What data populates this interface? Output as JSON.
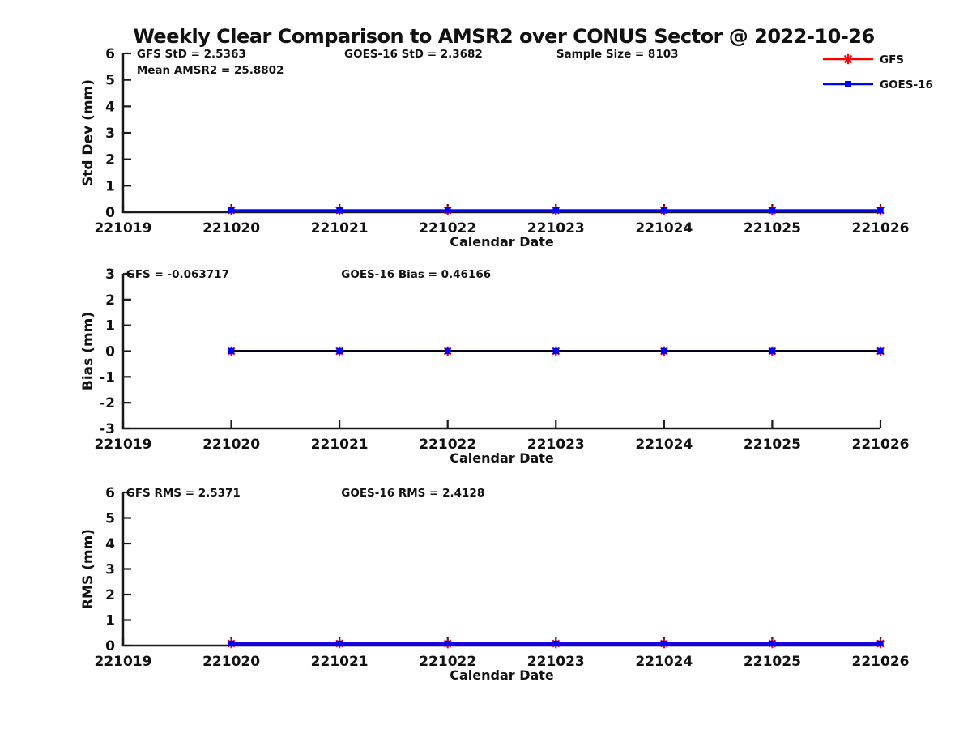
{
  "page": {
    "title": "Weekly Clear Comparison to AMSR2 over CONUS Sector @ 2022-10-26",
    "background": "#ffffff",
    "text_color": "#111111"
  },
  "legend": {
    "position": "top-right",
    "items": [
      {
        "label": "GFS",
        "color": "#ff0000",
        "marker": "asterisk"
      },
      {
        "label": "GOES-16",
        "color": "#0000ff",
        "marker": "square"
      }
    ]
  },
  "chart_data": [
    {
      "type": "line",
      "ylabel": "Std Dev (mm)",
      "xlabel": "Calendar Date",
      "ylim": [
        0,
        6
      ],
      "yticks": [
        0,
        1,
        2,
        3,
        4,
        5,
        6
      ],
      "x_range": [
        221019,
        221026
      ],
      "xtick_labels": [
        "221019",
        "221020",
        "221021",
        "221022",
        "221023",
        "221024",
        "221025",
        "221026"
      ],
      "grid": false,
      "annotations": [
        {
          "text": "GFS StD = 2.5363",
          "fx": 0.018,
          "row": 0
        },
        {
          "text": "Mean AMSR2 = 25.8802",
          "fx": 0.018,
          "row": 1
        },
        {
          "text": "GOES-16 StD = 2.3682",
          "fx": 0.292,
          "row": 0
        },
        {
          "text": "Sample Size = 8103",
          "fx": 0.572,
          "row": 0
        }
      ],
      "series": [
        {
          "name": "GFS",
          "color": "#ff0000",
          "marker": "asterisk",
          "x": [
            221020,
            221021,
            221022,
            221023,
            221024,
            221025,
            221026
          ],
          "values": [
            0.07,
            0.07,
            0.07,
            0.07,
            0.07,
            0.07,
            0.07
          ]
        },
        {
          "name": "GOES-16",
          "color": "#0000ff",
          "marker": "square",
          "x": [
            221020,
            221021,
            221022,
            221023,
            221024,
            221025,
            221026
          ],
          "values": [
            0.07,
            0.07,
            0.07,
            0.07,
            0.07,
            0.07,
            0.07
          ]
        }
      ]
    },
    {
      "type": "line",
      "ylabel": "Bias (mm)",
      "xlabel": "Calendar Date",
      "ylim": [
        -3,
        3
      ],
      "yticks": [
        -3,
        -2,
        -1,
        0,
        1,
        2,
        3
      ],
      "x_range": [
        221019,
        221026
      ],
      "xtick_labels": [
        "221019",
        "221020",
        "221021",
        "221022",
        "221023",
        "221024",
        "221025",
        "221026"
      ],
      "grid": false,
      "annotations": [
        {
          "text": "GFS = -0.063717",
          "fx": 0.004,
          "row": 0
        },
        {
          "text": "GOES-16 Bias  = 0.46166",
          "fx": 0.288,
          "row": 0
        }
      ],
      "overlay_line": {
        "y": 0,
        "color": "#000000",
        "x_from": 221020,
        "x_to": 221026
      },
      "series": [
        {
          "name": "GFS",
          "color": "#ff0000",
          "marker": "asterisk",
          "x": [
            221020,
            221021,
            221022,
            221023,
            221024,
            221025,
            221026
          ],
          "values": [
            0,
            0,
            0,
            0,
            0,
            0,
            0
          ]
        },
        {
          "name": "GOES-16",
          "color": "#0000ff",
          "marker": "square",
          "x": [
            221020,
            221021,
            221022,
            221023,
            221024,
            221025,
            221026
          ],
          "values": [
            0,
            0,
            0,
            0,
            0,
            0,
            0
          ]
        }
      ]
    },
    {
      "type": "line",
      "ylabel": "RMS (mm)",
      "xlabel": "Calendar Date",
      "ylim": [
        0,
        6
      ],
      "yticks": [
        0,
        1,
        2,
        3,
        4,
        5,
        6
      ],
      "x_range": [
        221019,
        221026
      ],
      "xtick_labels": [
        "221019",
        "221020",
        "221021",
        "221022",
        "221023",
        "221024",
        "221025",
        "221026"
      ],
      "grid": false,
      "annotations": [
        {
          "text": "GFS RMS = 2.5371",
          "fx": 0.004,
          "row": 0
        },
        {
          "text": "GOES-16 RMS = 2.4128",
          "fx": 0.288,
          "row": 0
        }
      ],
      "series": [
        {
          "name": "GFS",
          "color": "#ff0000",
          "marker": "asterisk",
          "x": [
            221020,
            221021,
            221022,
            221023,
            221024,
            221025,
            221026
          ],
          "values": [
            0.08,
            0.08,
            0.08,
            0.08,
            0.08,
            0.08,
            0.08
          ]
        },
        {
          "name": "GOES-16",
          "color": "#0000ff",
          "marker": "square",
          "x": [
            221020,
            221021,
            221022,
            221023,
            221024,
            221025,
            221026
          ],
          "values": [
            0.08,
            0.08,
            0.08,
            0.08,
            0.08,
            0.08,
            0.08
          ]
        }
      ]
    }
  ]
}
